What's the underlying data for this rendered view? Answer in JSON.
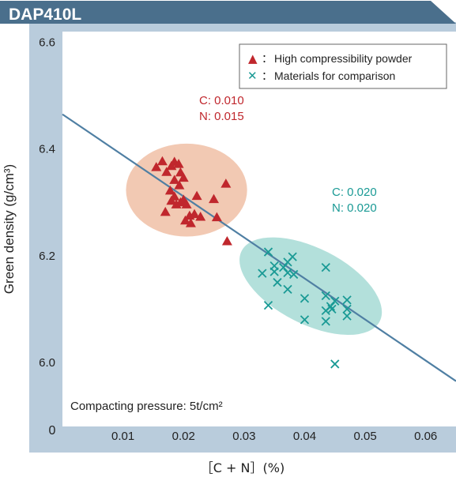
{
  "header": {
    "title": "DAP410L"
  },
  "colors": {
    "header_bg": "#4a6f8c",
    "frame_bg": "#b9ccdc",
    "plot_bg": "#ffffff",
    "series1": "#c0272d",
    "series2": "#1a9a95",
    "ellipse1": "#f0bfa6",
    "ellipse2": "#a6dbd5",
    "trend_line": "#4f7fa3"
  },
  "chart_data": {
    "type": "scatter",
    "xlabel": "［C + N］(%)",
    "ylabel": "Green density (g/cm³)",
    "xlim": [
      0,
      0.065
    ],
    "ylim": [
      5.88,
      6.62
    ],
    "x_ticks": [
      0.01,
      0.02,
      0.03,
      0.04,
      0.05,
      0.06
    ],
    "x_tick_labels": [
      "0.01",
      "0.02",
      "0.03",
      "0.04",
      "0.05",
      "0.06"
    ],
    "y_ticks": [
      6.0,
      6.2,
      6.4,
      6.6
    ],
    "y_tick_labels": [
      "6.0",
      "6.2",
      "6.4",
      "6.6"
    ],
    "origin_label": "0",
    "annotation": "Compacting pressure: 5t/cm²",
    "legend": {
      "position": "top-right",
      "entries": [
        {
          "marker": "▲",
          "separator": "：",
          "label": "High compressibility powder"
        },
        {
          "marker": "✕",
          "separator": "：",
          "label": "Materials for comparison"
        }
      ]
    },
    "series": [
      {
        "name": "High compressibility powder",
        "marker": "triangle",
        "label_lines": [
          "C: 0.010",
          "N: 0.015"
        ],
        "points": [
          [
            0.0155,
            6.366
          ],
          [
            0.0165,
            6.377
          ],
          [
            0.0172,
            6.357
          ],
          [
            0.018,
            6.368
          ],
          [
            0.0185,
            6.376
          ],
          [
            0.0192,
            6.372
          ],
          [
            0.0195,
            6.356
          ],
          [
            0.02,
            6.346
          ],
          [
            0.0185,
            6.342
          ],
          [
            0.0193,
            6.332
          ],
          [
            0.0178,
            6.322
          ],
          [
            0.0185,
            6.311
          ],
          [
            0.018,
            6.303
          ],
          [
            0.0188,
            6.296
          ],
          [
            0.0195,
            6.3
          ],
          [
            0.02,
            6.305
          ],
          [
            0.0205,
            6.296
          ],
          [
            0.017,
            6.282
          ],
          [
            0.021,
            6.275
          ],
          [
            0.0218,
            6.278
          ],
          [
            0.0228,
            6.273
          ],
          [
            0.0203,
            6.266
          ],
          [
            0.0212,
            6.261
          ],
          [
            0.0222,
            6.312
          ],
          [
            0.025,
            6.306
          ],
          [
            0.0255,
            6.272
          ],
          [
            0.027,
            6.335
          ],
          [
            0.0272,
            6.227
          ]
        ]
      },
      {
        "name": "Materials for comparison",
        "marker": "cross",
        "label_lines": [
          "C: 0.020",
          "N: 0.020"
        ],
        "points": [
          [
            0.034,
            6.207
          ],
          [
            0.035,
            6.181
          ],
          [
            0.035,
            6.17
          ],
          [
            0.033,
            6.167
          ],
          [
            0.0365,
            6.178
          ],
          [
            0.038,
            6.198
          ],
          [
            0.0372,
            6.188
          ],
          [
            0.0372,
            6.168
          ],
          [
            0.0382,
            6.165
          ],
          [
            0.0355,
            6.15
          ],
          [
            0.0372,
            6.137
          ],
          [
            0.034,
            6.107
          ],
          [
            0.04,
            6.12
          ],
          [
            0.04,
            6.08
          ],
          [
            0.0435,
            6.178
          ],
          [
            0.0435,
            6.125
          ],
          [
            0.045,
            6.115
          ],
          [
            0.047,
            6.117
          ],
          [
            0.0435,
            6.097
          ],
          [
            0.0445,
            6.1
          ],
          [
            0.047,
            6.1
          ],
          [
            0.047,
            6.087
          ],
          [
            0.0435,
            6.077
          ],
          [
            0.0443,
            6.105
          ],
          [
            0.045,
            5.997
          ]
        ]
      }
    ],
    "trend_line": {
      "x": [
        0,
        0.065
      ],
      "y": [
        6.465,
        5.965
      ]
    },
    "groups": [
      {
        "cx": 0.0205,
        "cy": 6.323,
        "rx": 0.01,
        "ry": 0.087,
        "angle": 0
      },
      {
        "cx": 0.041,
        "cy": 6.143,
        "rx": 0.0128,
        "ry": 0.071,
        "angle": 27
      }
    ],
    "grid": false
  }
}
